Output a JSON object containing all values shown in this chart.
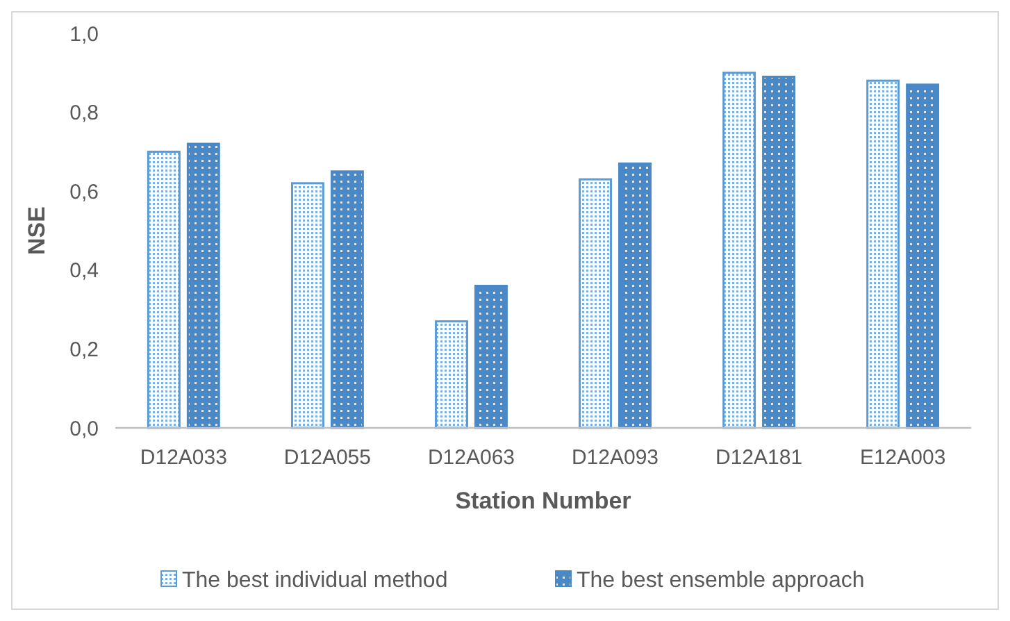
{
  "chart_data": {
    "type": "bar",
    "xlabel": "Station Number",
    "ylabel": "NSE",
    "categories": [
      "D12A033",
      "D12A055",
      "D12A063",
      "D12A093",
      "D12A181",
      "E12A003"
    ],
    "series": [
      {
        "name": "The best individual method",
        "color": "#5b9bd5",
        "values": [
          0.7,
          0.62,
          0.27,
          0.63,
          0.9,
          0.88
        ]
      },
      {
        "name": "The best ensemble approach",
        "color": "#4a89c8",
        "values": [
          0.72,
          0.65,
          0.36,
          0.67,
          0.89,
          0.87
        ]
      }
    ],
    "ylim": [
      0,
      1
    ],
    "yticks": [
      {
        "value": 0,
        "label": "0,0"
      },
      {
        "value": 0.2,
        "label": "0,2"
      },
      {
        "value": 0.4,
        "label": "0,4"
      },
      {
        "value": 0.6,
        "label": "0,6"
      },
      {
        "value": 0.8,
        "label": "0,8"
      },
      {
        "value": 1,
        "label": "1,0"
      }
    ],
    "grid": false,
    "legend": "bottom"
  }
}
